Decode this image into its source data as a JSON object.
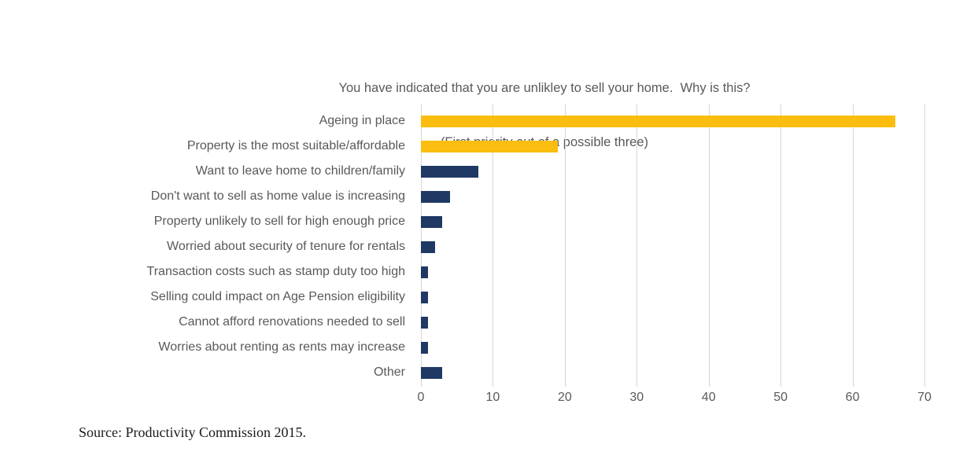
{
  "chart_data": {
    "type": "bar",
    "orientation": "horizontal",
    "title": "You have indicated that you are unlikley to sell your home.  Why is this?",
    "subtitle": "(First priority out of a possible three)",
    "categories": [
      "Ageing in place",
      "Property is the most suitable/affordable",
      "Want to leave home to children/family",
      "Don't want to sell as home value is increasing",
      "Property unlikely to sell for high enough price",
      "Worried about security of tenure for rentals",
      "Transaction costs such as stamp duty too high",
      "Selling could impact on Age Pension eligibility",
      "Cannot afford renovations needed to sell",
      "Worries about renting as rents may increase",
      "Other"
    ],
    "values": [
      66,
      19,
      8,
      4,
      3,
      2,
      1,
      1,
      1,
      1,
      3
    ],
    "bar_colors": [
      "#fbbe10",
      "#fbbe10",
      "#1f3864",
      "#1f3864",
      "#1f3864",
      "#1f3864",
      "#1f3864",
      "#1f3864",
      "#1f3864",
      "#1f3864",
      "#1f3864"
    ],
    "xlabel": "",
    "ylabel": "",
    "xlim": [
      0,
      70
    ],
    "x_ticks": [
      0,
      10,
      20,
      30,
      40,
      50,
      60,
      70
    ],
    "grid": "vertical",
    "legend_position": "none"
  },
  "colors": {
    "highlight_gold": "#fbbe10",
    "bar_navy": "#1f3864",
    "gridline": "#d6d6d6",
    "text_gray": "#595959"
  },
  "source_note": "Source: Productivity Commission 2015."
}
